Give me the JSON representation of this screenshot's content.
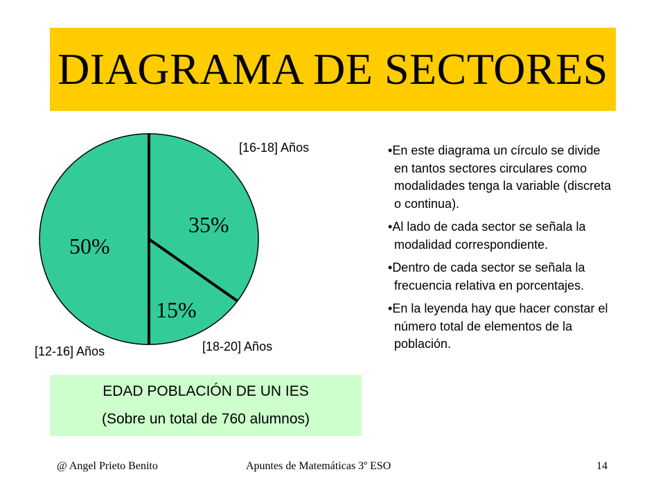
{
  "title": "DIAGRAMA DE SECTORES",
  "chart_data": {
    "type": "pie",
    "categories": [
      "[16-18] Años",
      "[18-20] Años",
      "[12-16] Años"
    ],
    "values": [
      35,
      15,
      50
    ],
    "value_labels": [
      "35%",
      "15%",
      "50%"
    ],
    "fill_color": "#33cc99",
    "stroke_color": "#000000",
    "legend": {
      "line1": "EDAD POBLACIÓN DE UN IES",
      "line2": "(Sobre un total de 760 alumnos)"
    }
  },
  "bullets": [
    "En este diagrama un círculo se divide en tantos sectores circulares como modalidades tenga la variable (discreta o continua).",
    "Al lado de cada sector se señala la modalidad correspondiente.",
    "Dentro de cada sector se señala la frecuencia relativa en porcentajes.",
    "En la leyenda hay que hacer constar el número total de elementos de la población."
  ],
  "footer": {
    "author": "@ Angel Prieto Benito",
    "course": "Apuntes de Matemáticas 3º ESO",
    "page": "14"
  },
  "colors": {
    "banner": "#ffcc00",
    "legend_background": "#ccffcc"
  }
}
